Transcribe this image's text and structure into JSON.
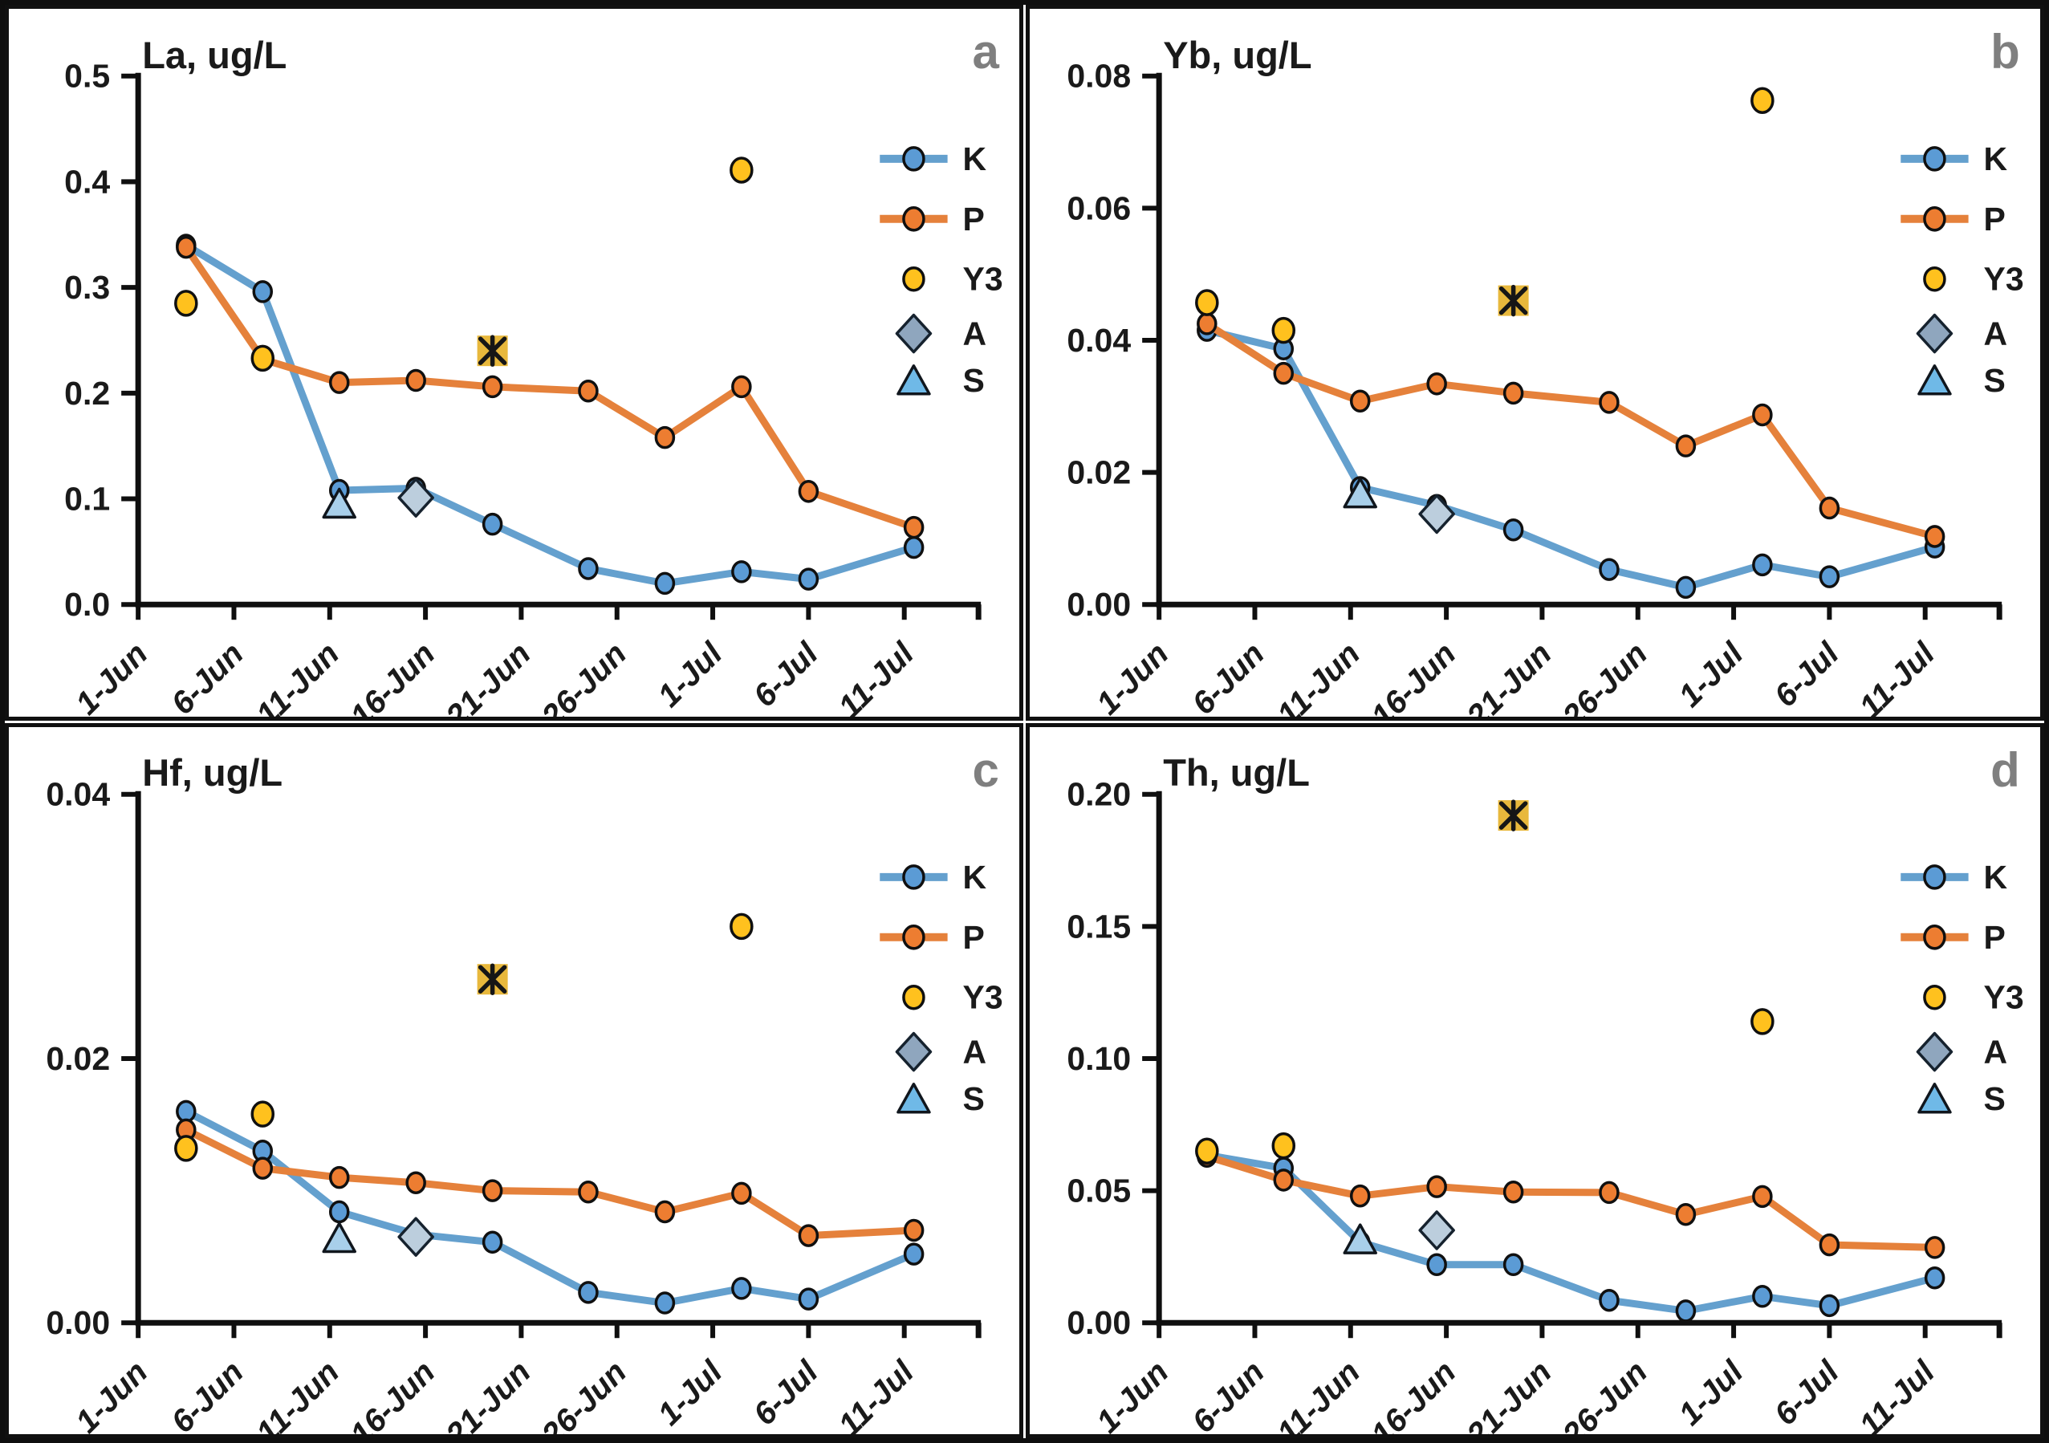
{
  "colors": {
    "axis": "#0f0f0f",
    "text": "#1a1a1a",
    "panel_letter": "#7f7f7f",
    "marker_outline": "#101010",
    "K_line": "#64A0CE",
    "K_marker": "#5B9BD5",
    "P_line": "#E5813B",
    "P_marker": "#ED7D31",
    "Y3_fill": "#FFC11E",
    "star_square": "#E8B83C",
    "star_glyph": "#161616",
    "A_fill": "#BCCEDD",
    "A_legend_fill": "#8FA6BE",
    "S_fill": "#A8CFEA",
    "S_legend_fill": "#6FB9E7"
  },
  "x_axis": {
    "domain_days": [
      0,
      44
    ],
    "ticks": [
      {
        "day": 0,
        "label": "1-Jun"
      },
      {
        "day": 5,
        "label": "6-Jun"
      },
      {
        "day": 10,
        "label": "11-Jun"
      },
      {
        "day": 15,
        "label": "16-Jun"
      },
      {
        "day": 20,
        "label": "21-Jun"
      },
      {
        "day": 25,
        "label": "26-Jun"
      },
      {
        "day": 30,
        "label": "1-Jul"
      },
      {
        "day": 35,
        "label": "6-Jul"
      },
      {
        "day": 40,
        "label": "11-Jul"
      }
    ]
  },
  "sample_days": [
    2.5,
    6.5,
    10.5,
    14.5,
    18.5,
    23.5,
    27.5,
    31.5,
    35,
    40.5
  ],
  "sample_dates_estimated": [
    "3-Jun",
    "7-Jun",
    "11-Jun",
    "15-Jun",
    "19-Jun",
    "24-Jun",
    "28-Jun",
    "2-Jul",
    "5-Jul",
    "11-Jul"
  ],
  "legend": {
    "items": [
      {
        "key": "K",
        "label": "K"
      },
      {
        "key": "P",
        "label": "P"
      },
      {
        "key": "Y3",
        "label": "Y3"
      },
      {
        "key": "A",
        "label": "A"
      },
      {
        "key": "S",
        "label": "S"
      }
    ]
  },
  "chart_data": [
    {
      "panel": "a",
      "type": "line",
      "title": "La, ug/L",
      "ylim": [
        0,
        0.5
      ],
      "y_ticks": [
        {
          "value": 0.0,
          "label": "0.0"
        },
        {
          "value": 0.1,
          "label": "0.1"
        },
        {
          "value": 0.2,
          "label": "0.2"
        },
        {
          "value": 0.3,
          "label": "0.3"
        },
        {
          "value": 0.4,
          "label": "0.4"
        },
        {
          "value": 0.5,
          "label": "0.5"
        }
      ],
      "series": [
        {
          "name": "K",
          "type": "line",
          "values": [
            0.34,
            0.296,
            0.108,
            0.11,
            0.076,
            0.034,
            0.02,
            0.031,
            0.024,
            0.054
          ]
        },
        {
          "name": "P",
          "type": "line",
          "values": [
            0.338,
            0.232,
            0.21,
            0.212,
            0.206,
            0.202,
            0.158,
            0.206,
            0.107,
            0.073
          ]
        },
        {
          "name": "star",
          "type": "scatter",
          "marker": "square-asterisk",
          "in_legend": false,
          "points": [
            {
              "day": 18.5,
              "value": 0.24
            }
          ]
        },
        {
          "name": "Y3",
          "type": "scatter",
          "marker": "circle",
          "points": [
            {
              "day": 2.5,
              "value": 0.285
            },
            {
              "day": 6.5,
              "value": 0.233
            },
            {
              "day": 31.5,
              "value": 0.411
            }
          ]
        },
        {
          "name": "A",
          "type": "scatter",
          "marker": "diamond",
          "points": [
            {
              "day": 14.5,
              "value": 0.101
            }
          ]
        },
        {
          "name": "S",
          "type": "scatter",
          "marker": "triangle",
          "points": [
            {
              "day": 10.5,
              "value": 0.094
            }
          ]
        }
      ]
    },
    {
      "panel": "b",
      "type": "line",
      "title": "Yb, ug/L",
      "ylim": [
        0,
        0.08
      ],
      "y_ticks": [
        {
          "value": 0.0,
          "label": "0.00"
        },
        {
          "value": 0.02,
          "label": "0.02"
        },
        {
          "value": 0.04,
          "label": "0.04"
        },
        {
          "value": 0.06,
          "label": "0.06"
        },
        {
          "value": 0.08,
          "label": "0.08"
        }
      ],
      "series": [
        {
          "name": "K",
          "type": "line",
          "values": [
            0.0415,
            0.0387,
            0.0177,
            0.015,
            0.0113,
            0.0053,
            0.0026,
            0.006,
            0.0042,
            0.0087
          ]
        },
        {
          "name": "P",
          "type": "line",
          "values": [
            0.0425,
            0.035,
            0.0308,
            0.0334,
            0.032,
            0.0306,
            0.024,
            0.0287,
            0.0146,
            0.0103
          ]
        },
        {
          "name": "star",
          "type": "scatter",
          "marker": "square-asterisk",
          "in_legend": false,
          "points": [
            {
              "day": 18.5,
              "value": 0.046
            }
          ]
        },
        {
          "name": "Y3",
          "type": "scatter",
          "marker": "circle",
          "points": [
            {
              "day": 2.5,
              "value": 0.0457
            },
            {
              "day": 6.5,
              "value": 0.0415
            },
            {
              "day": 31.5,
              "value": 0.0763
            }
          ]
        },
        {
          "name": "A",
          "type": "scatter",
          "marker": "diamond",
          "points": [
            {
              "day": 14.5,
              "value": 0.0137
            }
          ]
        },
        {
          "name": "S",
          "type": "scatter",
          "marker": "triangle",
          "points": [
            {
              "day": 10.5,
              "value": 0.0166
            }
          ]
        }
      ]
    },
    {
      "panel": "c",
      "type": "line",
      "title": "Hf, ug/L",
      "ylim": [
        0,
        0.04
      ],
      "y_ticks": [
        {
          "value": 0.0,
          "label": "0.00"
        },
        {
          "value": 0.02,
          "label": "0.02"
        },
        {
          "value": 0.04,
          "label": "0.04"
        }
      ],
      "series": [
        {
          "name": "K",
          "type": "line",
          "values": [
            0.016,
            0.013,
            0.0084,
            0.0067,
            0.0061,
            0.0023,
            0.0015,
            0.0026,
            0.0018,
            0.0052
          ]
        },
        {
          "name": "P",
          "type": "line",
          "values": [
            0.0146,
            0.0117,
            0.011,
            0.0106,
            0.01,
            0.0099,
            0.0084,
            0.0098,
            0.0066,
            0.007
          ]
        },
        {
          "name": "star",
          "type": "scatter",
          "marker": "square-asterisk",
          "in_legend": false,
          "points": [
            {
              "day": 18.5,
              "value": 0.026
            }
          ]
        },
        {
          "name": "Y3",
          "type": "scatter",
          "marker": "circle",
          "points": [
            {
              "day": 2.5,
              "value": 0.0132
            },
            {
              "day": 6.5,
              "value": 0.0158
            },
            {
              "day": 31.5,
              "value": 0.03
            }
          ]
        },
        {
          "name": "A",
          "type": "scatter",
          "marker": "diamond",
          "points": [
            {
              "day": 14.5,
              "value": 0.0065
            }
          ]
        },
        {
          "name": "S",
          "type": "scatter",
          "marker": "triangle",
          "points": [
            {
              "day": 10.5,
              "value": 0.0063
            }
          ]
        }
      ]
    },
    {
      "panel": "d",
      "type": "line",
      "title": "Th, ug/L",
      "ylim": [
        0,
        0.2
      ],
      "y_ticks": [
        {
          "value": 0.0,
          "label": "0.00"
        },
        {
          "value": 0.05,
          "label": "0.05"
        },
        {
          "value": 0.1,
          "label": "0.10"
        },
        {
          "value": 0.15,
          "label": "0.15"
        },
        {
          "value": 0.2,
          "label": "0.20"
        }
      ],
      "series": [
        {
          "name": "K",
          "type": "line",
          "values": [
            0.0635,
            0.0585,
            0.0305,
            0.022,
            0.022,
            0.0085,
            0.0045,
            0.01,
            0.0065,
            0.017
          ]
        },
        {
          "name": "P",
          "type": "line",
          "values": [
            0.063,
            0.054,
            0.048,
            0.0515,
            0.0495,
            0.0493,
            0.041,
            0.0478,
            0.0295,
            0.0285
          ]
        },
        {
          "name": "star",
          "type": "scatter",
          "marker": "square-asterisk",
          "in_legend": false,
          "points": [
            {
              "day": 18.5,
              "value": 0.192
            }
          ]
        },
        {
          "name": "Y3",
          "type": "scatter",
          "marker": "circle",
          "points": [
            {
              "day": 2.5,
              "value": 0.065
            },
            {
              "day": 6.5,
              "value": 0.067
            },
            {
              "day": 31.5,
              "value": 0.114
            }
          ]
        },
        {
          "name": "A",
          "type": "scatter",
          "marker": "diamond",
          "points": [
            {
              "day": 14.5,
              "value": 0.035
            }
          ]
        },
        {
          "name": "S",
          "type": "scatter",
          "marker": "triangle",
          "points": [
            {
              "day": 10.5,
              "value": 0.031
            }
          ]
        }
      ]
    }
  ]
}
